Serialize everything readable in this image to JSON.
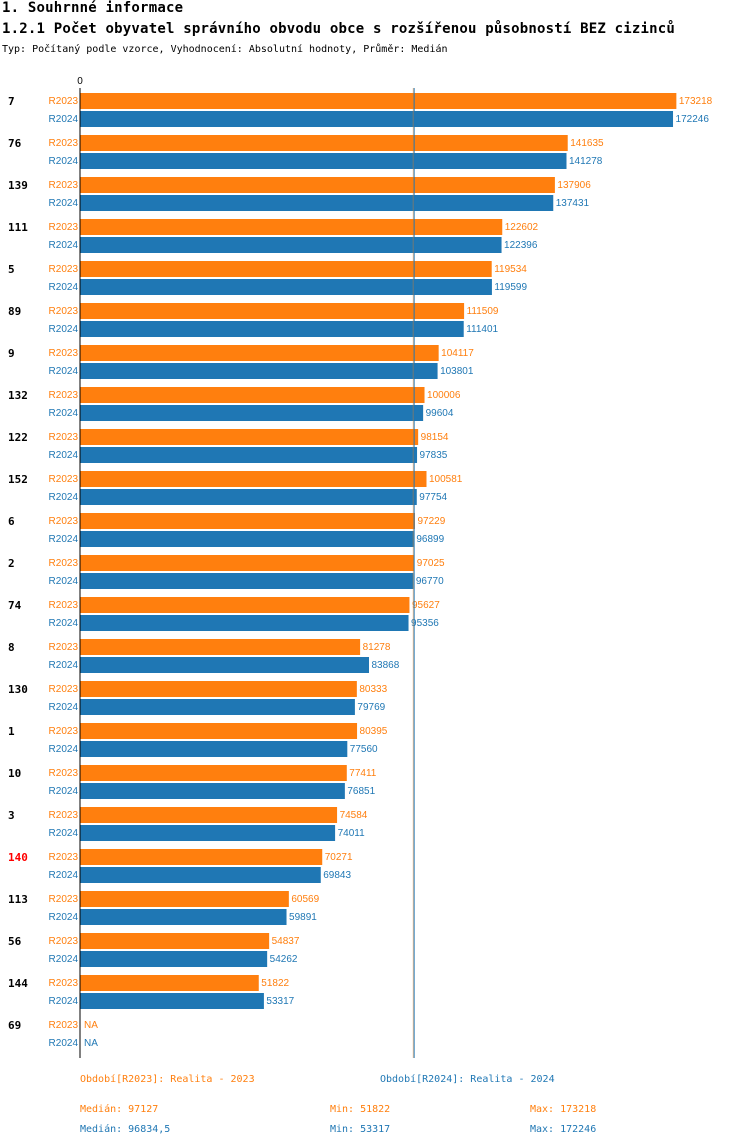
{
  "heading": {
    "section": "1. Souhrnné informace",
    "title": "1.2.1 Počet obyvatel správního obvodu obce s rozšířenou působností BEZ cizinců",
    "subtitle": "Typ: Počítaný podle vzorce, Vyhodnocení: Absolutní hodnoty, Průměr: Medián"
  },
  "colors": {
    "r2023": "#ff7f0e",
    "r2024": "#1f77b4",
    "highlight": "#ff0000",
    "median_line": "#1f77b4"
  },
  "chart_data": {
    "type": "bar",
    "orientation": "horizontal",
    "axis_zero_label": "0",
    "xlim": [
      0,
      175000
    ],
    "highlight_category": "140",
    "median_reference": 97127,
    "categories": [
      "7",
      "76",
      "139",
      "111",
      "5",
      "89",
      "9",
      "132",
      "122",
      "152",
      "6",
      "2",
      "74",
      "8",
      "130",
      "1",
      "10",
      "3",
      "140",
      "113",
      "56",
      "144",
      "69"
    ],
    "series": [
      {
        "name": "R2023",
        "values": [
          173218,
          141635,
          137906,
          122602,
          119534,
          111509,
          104117,
          100006,
          98154,
          100581,
          97229,
          97025,
          95627,
          81278,
          80333,
          80395,
          77411,
          74584,
          70271,
          60569,
          54837,
          51822,
          null
        ],
        "labels": [
          "173218",
          "141635",
          "137906",
          "122602",
          "119534",
          "111509",
          "104117",
          "100006",
          "98154",
          "100581",
          "97229",
          "97025",
          "95627",
          "81278",
          "80333",
          "80395",
          "77411",
          "74584",
          "70271",
          "60569",
          "54837",
          "51822",
          "NA"
        ]
      },
      {
        "name": "R2024",
        "values": [
          172246,
          141278,
          137431,
          122396,
          119599,
          111401,
          103801,
          99604,
          97835,
          97754,
          96899,
          96770,
          95356,
          83868,
          79769,
          77560,
          76851,
          74011,
          69843,
          59891,
          54262,
          53317,
          null
        ],
        "labels": [
          "172246",
          "141278",
          "137431",
          "122396",
          "119599",
          "111401",
          "103801",
          "99604",
          "97835",
          "97754",
          "96899",
          "96770",
          "95356",
          "83868",
          "79769",
          "77560",
          "76851",
          "74011",
          "69843",
          "59891",
          "54262",
          "53317",
          "NA"
        ]
      }
    ]
  },
  "legend": {
    "r2023": "Období[R2023]: Realita - 2023",
    "r2024": "Období[R2024]: Realita - 2024"
  },
  "stats": {
    "r2023": {
      "median": "Medián: 97127",
      "min": "Min: 51822",
      "max": "Max: 173218"
    },
    "r2024": {
      "median": "Medián: 96834,5",
      "min": "Min: 53317",
      "max": "Max: 172246"
    }
  }
}
